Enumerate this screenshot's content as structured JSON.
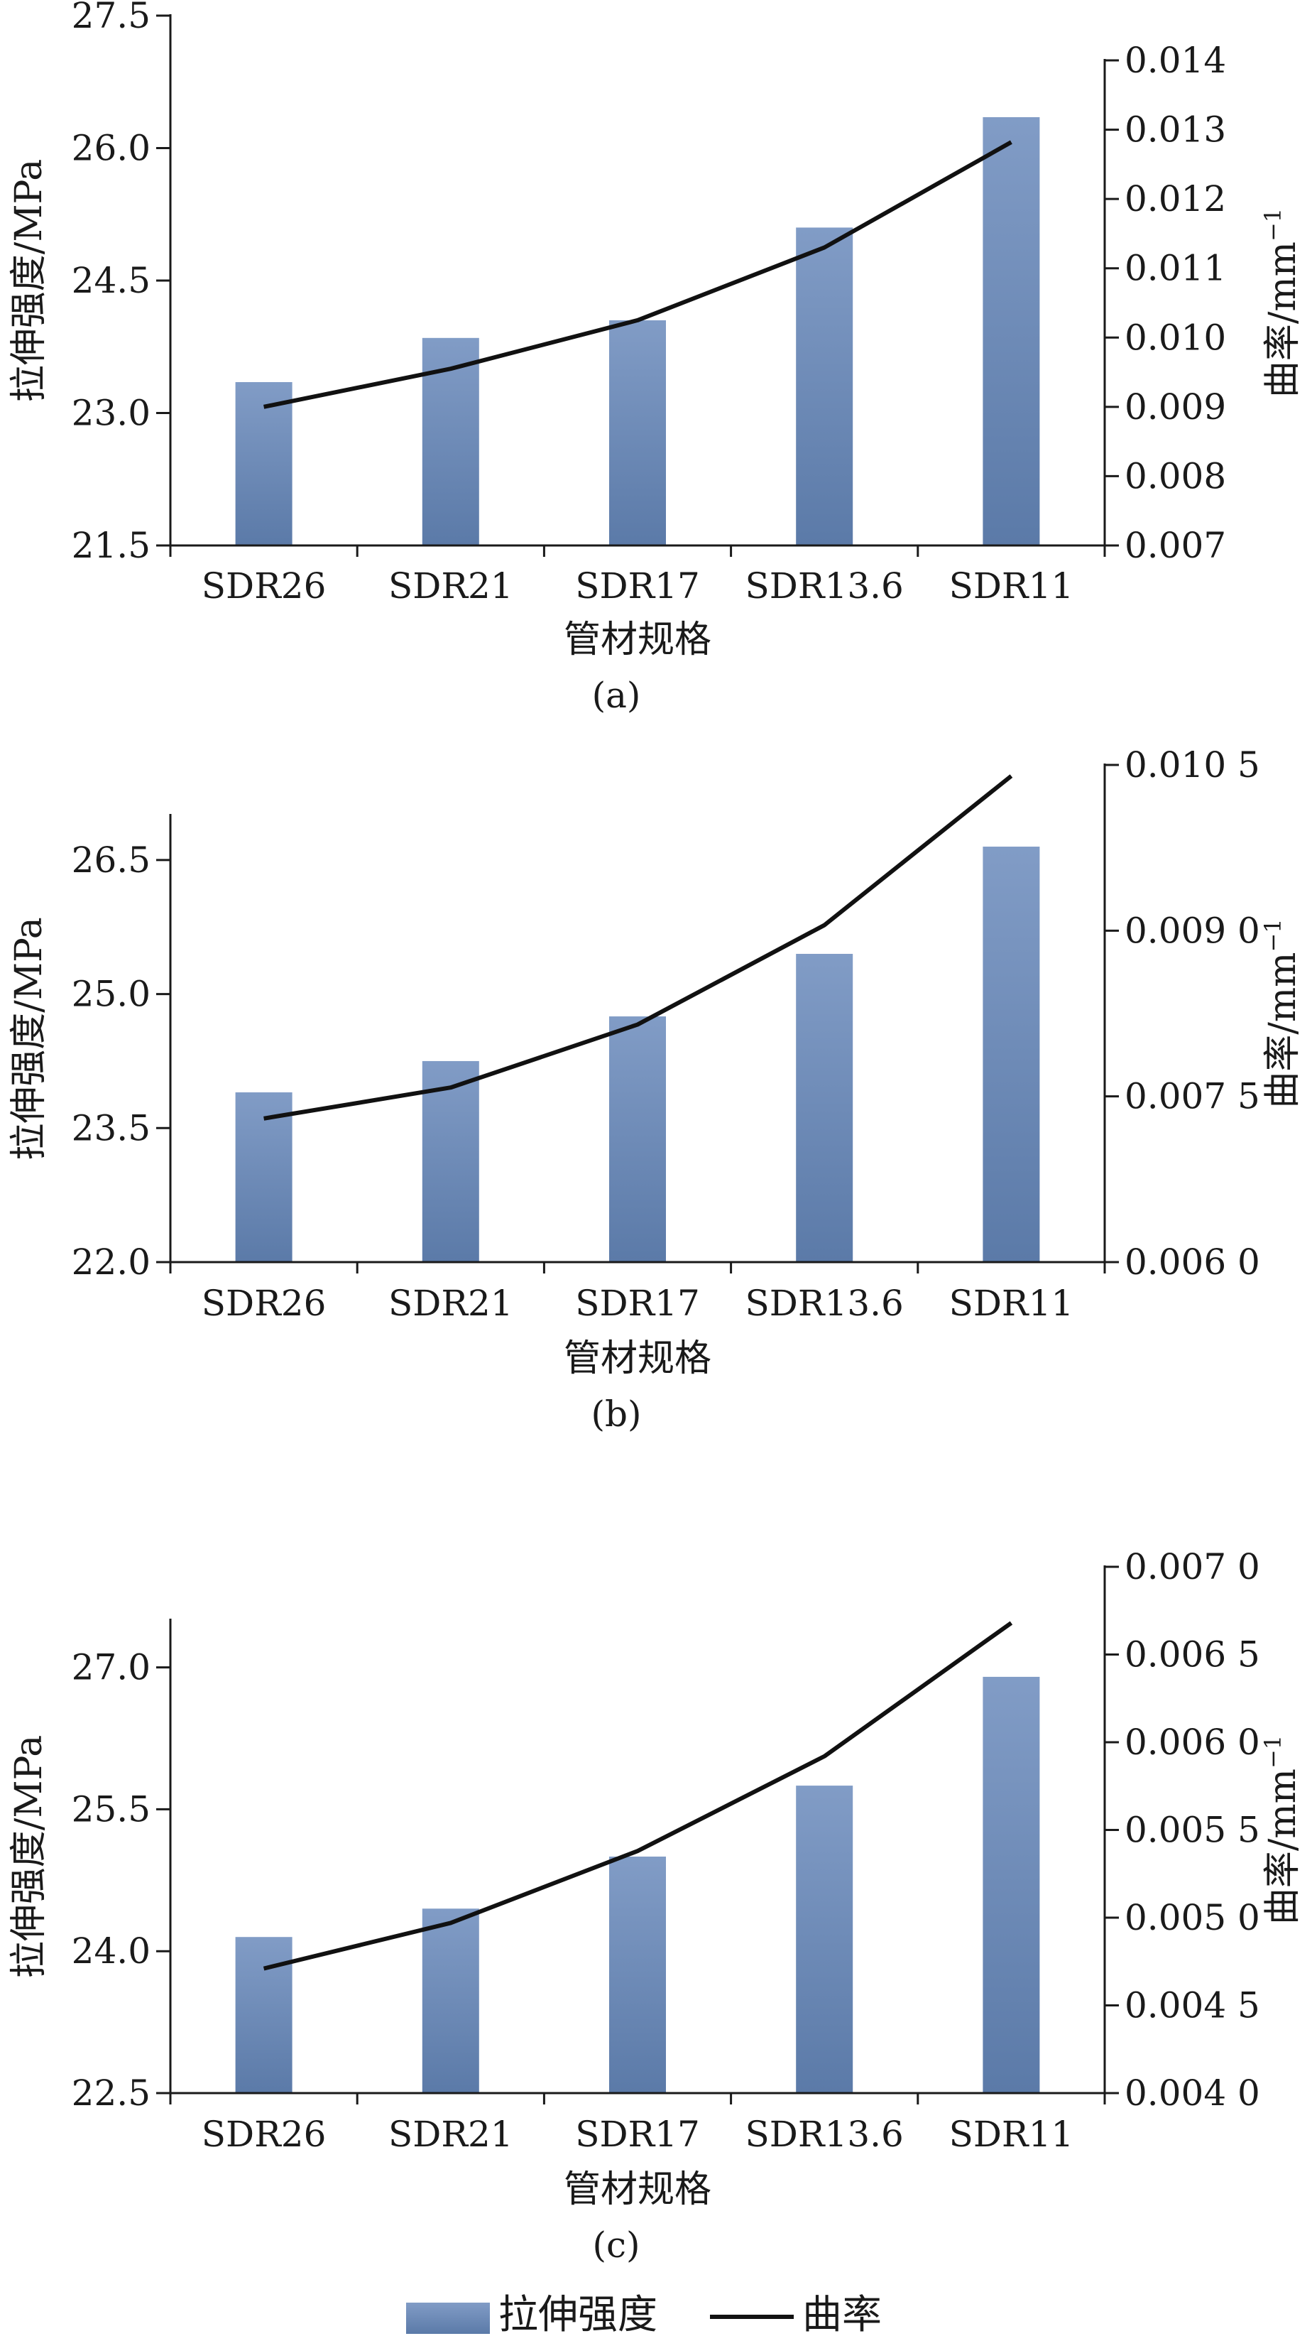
{
  "colors": {
    "bar_top": "#819cc6",
    "bar_bottom": "#5b7aa8",
    "line": "#111111",
    "axis": "#1a1a1a"
  },
  "legend": {
    "bar_label": "拉伸强度",
    "line_label": "曲率"
  },
  "chart_data": [
    {
      "type": "bar",
      "panel_label": "(a)",
      "xlabel": "管材规格",
      "ylabel": "拉伸强度/MPa",
      "y2label": "曲率/mm",
      "y2label_exp": "−1",
      "categories": [
        "SDR26",
        "SDR21",
        "SDR17",
        "SDR13.6",
        "SDR11"
      ],
      "ylim": [
        21.5,
        27.5
      ],
      "yticks": [
        "21.5",
        "23.0",
        "24.5",
        "26.0",
        "27.5"
      ],
      "y2lim": [
        0.007,
        0.014
      ],
      "y2ticks": [
        "0.007",
        "0.008",
        "0.009",
        "0.010",
        "0.011",
        "0.012",
        "0.013",
        "0.014"
      ],
      "series": [
        {
          "name": "拉伸强度",
          "type": "bar",
          "axis": "left",
          "values": [
            23.35,
            23.85,
            24.05,
            25.1,
            26.35
          ]
        },
        {
          "name": "曲率",
          "type": "line",
          "axis": "right",
          "values": [
            0.009,
            0.00955,
            0.01025,
            0.0113,
            0.01282
          ]
        }
      ],
      "grid": false
    },
    {
      "type": "bar",
      "panel_label": "(b)",
      "xlabel": "管材规格",
      "ylabel": "拉伸强度/MPa",
      "y2label": "曲率/mm",
      "y2label_exp": "−1",
      "categories": [
        "SDR26",
        "SDR21",
        "SDR17",
        "SDR13.6",
        "SDR11"
      ],
      "ylim": [
        22.0,
        27.0
      ],
      "yticks": [
        "22.0",
        "23.5",
        "25.0",
        "26.5"
      ],
      "y2lim": [
        0.006,
        0.0105
      ],
      "y2ticks": [
        "0.006 0",
        "0.007 5",
        "0.009 0",
        "0.010 5"
      ],
      "series": [
        {
          "name": "拉伸强度",
          "type": "bar",
          "axis": "left",
          "values": [
            23.9,
            24.25,
            24.75,
            25.45,
            26.65
          ]
        },
        {
          "name": "曲率",
          "type": "line",
          "axis": "right",
          "values": [
            0.0073,
            0.00758,
            0.00815,
            0.00905,
            0.0104
          ]
        }
      ],
      "grid": false
    },
    {
      "type": "bar",
      "panel_label": "(c)",
      "xlabel": "管材规格",
      "ylabel": "拉伸强度/MPa",
      "y2label": "曲率/mm",
      "y2label_exp": "−1",
      "categories": [
        "SDR26",
        "SDR21",
        "SDR17",
        "SDR13.6",
        "SDR11"
      ],
      "ylim": [
        22.5,
        27.5
      ],
      "yticks": [
        "22.5",
        "24.0",
        "25.5",
        "27.0"
      ],
      "y2lim": [
        0.004,
        0.007
      ],
      "y2ticks": [
        "0.004 0",
        "0.004 5",
        "0.005 0",
        "0.005 5",
        "0.006 0",
        "0.006 5",
        "0.007 0"
      ],
      "series": [
        {
          "name": "拉伸强度",
          "type": "bar",
          "axis": "left",
          "values": [
            24.15,
            24.45,
            25.0,
            25.75,
            26.9
          ]
        },
        {
          "name": "曲率",
          "type": "line",
          "axis": "right",
          "values": [
            0.00471,
            0.00497,
            0.00538,
            0.00592,
            0.00668
          ]
        }
      ],
      "grid": false
    }
  ]
}
